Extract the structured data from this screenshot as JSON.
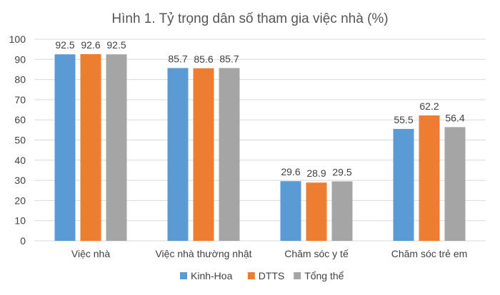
{
  "chart_data": {
    "type": "bar",
    "title": "Hình 1. Tỷ trọng dân số tham gia việc nhà (%)",
    "xlabel": "",
    "ylabel": "",
    "ylim": [
      0,
      100
    ],
    "yticks": [
      0,
      10,
      20,
      30,
      40,
      50,
      60,
      70,
      80,
      90,
      100
    ],
    "categories": [
      "Việc nhà",
      "Việc nhà thường nhật",
      "Chăm sóc y tế",
      "Chăm sóc trẻ em"
    ],
    "series": [
      {
        "name": "Kinh-Hoa",
        "color": "#5b9bd5",
        "values": [
          92.5,
          85.7,
          29.6,
          55.5
        ]
      },
      {
        "name": "DTTS",
        "color": "#ed7d31",
        "values": [
          92.6,
          85.6,
          28.9,
          62.2
        ]
      },
      {
        "name": "Tổng thể",
        "color": "#a5a5a5",
        "values": [
          92.5,
          85.7,
          29.5,
          56.4
        ]
      }
    ],
    "grid": true,
    "legend_position": "bottom",
    "data_labels": true
  }
}
